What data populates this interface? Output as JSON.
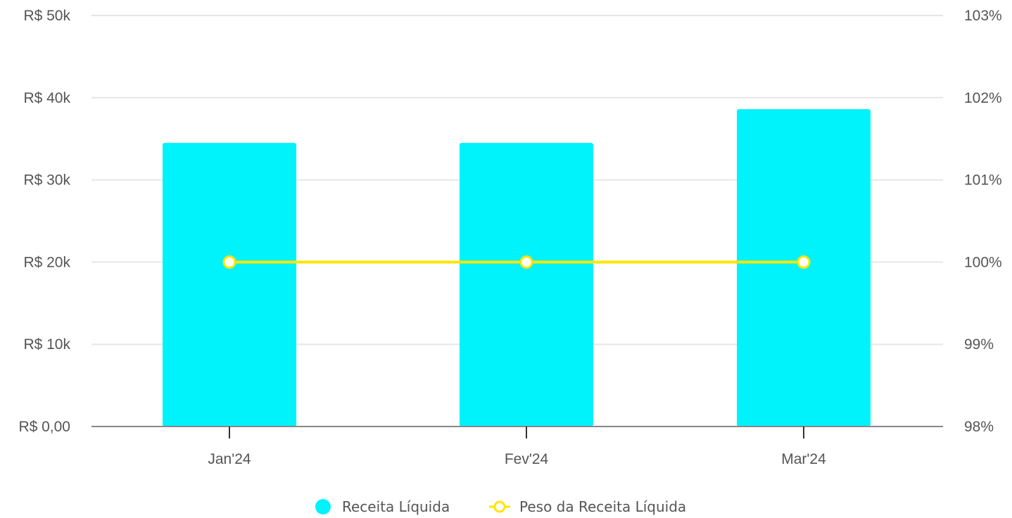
{
  "chart_data": {
    "type": "bar",
    "categories": [
      "Jan'24",
      "Fev'24",
      "Mar'24"
    ],
    "series": [
      {
        "name": "Receita Líquida",
        "type": "bar",
        "axis": "left",
        "color": "#00f3fb",
        "values": [
          34500,
          34500,
          38600
        ]
      },
      {
        "name": "Peso da Receita Líquida",
        "type": "line",
        "axis": "right",
        "color": "#ffe600",
        "values": [
          100,
          100,
          100
        ]
      }
    ],
    "y_left": {
      "ylim": [
        0,
        50000
      ],
      "ticks": [
        0,
        10000,
        20000,
        30000,
        40000,
        50000
      ],
      "tick_labels": [
        "R$ 0,00",
        "R$ 10k",
        "R$ 20k",
        "R$ 30k",
        "R$ 40k",
        "R$ 50k"
      ]
    },
    "y_right": {
      "ylim": [
        98,
        103
      ],
      "ticks": [
        98,
        99,
        100,
        101,
        102,
        103
      ],
      "tick_labels": [
        "98%",
        "99%",
        "100%",
        "101%",
        "102%",
        "103%"
      ]
    },
    "grid": true,
    "legend": "bottom-center"
  }
}
